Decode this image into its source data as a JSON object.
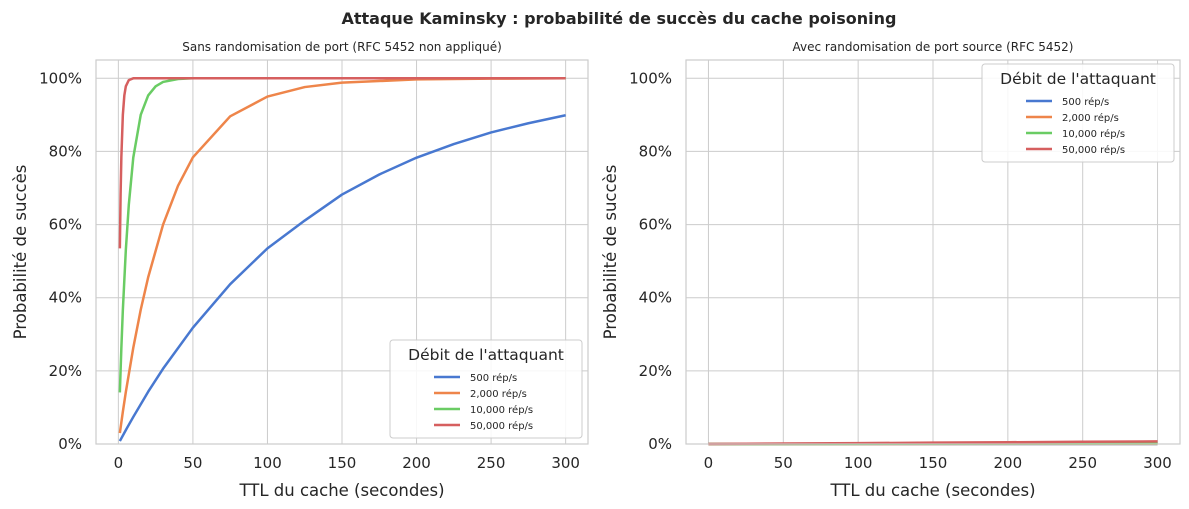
{
  "suptitle": "Attaque Kaminsky : probabilité de succès du cache poisoning",
  "chart_data": [
    {
      "type": "line",
      "title": "Sans randomisation de port (RFC 5452 non appliqué)",
      "xlabel": "TTL du cache (secondes)",
      "ylabel": "Probabilité de succès",
      "xlim": [
        -15,
        315
      ],
      "ylim": [
        0,
        1.05
      ],
      "xticks": [
        0,
        50,
        100,
        150,
        200,
        250,
        300
      ],
      "xtick_labels": [
        "0",
        "50",
        "100",
        "150",
        "200",
        "250",
        "300"
      ],
      "yticks": [
        0,
        0.2,
        0.4,
        0.6,
        0.8,
        1.0
      ],
      "ytick_labels": [
        "0%",
        "20%",
        "40%",
        "60%",
        "80%",
        "100%"
      ],
      "grid": true,
      "legend": {
        "title": "Débit de l'attaquant",
        "position": "lower-right",
        "entries": [
          "500 rép/s",
          "2,000 rép/s",
          "10,000 rép/s",
          "50,000 rép/s"
        ]
      },
      "series": [
        {
          "name": "500 rép/s",
          "color": "#4878d0",
          "x": [
            1,
            5,
            10,
            20,
            30,
            50,
            75,
            100,
            125,
            150,
            175,
            200,
            225,
            250,
            275,
            300
          ],
          "y": [
            0.008,
            0.038,
            0.074,
            0.143,
            0.206,
            0.318,
            0.437,
            0.535,
            0.611,
            0.682,
            0.737,
            0.783,
            0.82,
            0.852,
            0.877,
            0.899
          ]
        },
        {
          "name": "2,000 rép/s",
          "color": "#ee854a",
          "x": [
            1,
            3,
            5,
            10,
            15,
            20,
            30,
            40,
            50,
            75,
            100,
            125,
            150,
            200,
            250,
            300
          ],
          "y": [
            0.03,
            0.088,
            0.142,
            0.263,
            0.367,
            0.456,
            0.6,
            0.706,
            0.784,
            0.896,
            0.95,
            0.976,
            0.988,
            0.997,
            0.999,
            1.0
          ]
        },
        {
          "name": "10,000 rép/s",
          "color": "#6acc64",
          "x": [
            1,
            2,
            3,
            5,
            7,
            10,
            15,
            20,
            25,
            30,
            40,
            50,
            75,
            100,
            200,
            300
          ],
          "y": [
            0.141,
            0.262,
            0.366,
            0.53,
            0.654,
            0.783,
            0.9,
            0.953,
            0.978,
            0.99,
            0.998,
            1.0,
            1.0,
            1.0,
            1.0,
            1.0
          ]
        },
        {
          "name": "50,000 rép/s",
          "color": "#d65f5f",
          "x": [
            1,
            1.5,
            2,
            3,
            4,
            5,
            7,
            10,
            20,
            50,
            100,
            200,
            300
          ],
          "y": [
            0.535,
            0.684,
            0.784,
            0.9,
            0.953,
            0.978,
            0.995,
            1.0,
            1.0,
            1.0,
            1.0,
            1.0,
            1.0
          ]
        }
      ]
    },
    {
      "type": "line",
      "title": "Avec randomisation de port source (RFC 5452)",
      "xlabel": "TTL du cache (secondes)",
      "ylabel": "Probabilité de succès",
      "xlim": [
        -15,
        315
      ],
      "ylim": [
        0,
        1.05
      ],
      "xticks": [
        0,
        50,
        100,
        150,
        200,
        250,
        300
      ],
      "xtick_labels": [
        "0",
        "50",
        "100",
        "150",
        "200",
        "250",
        "300"
      ],
      "yticks": [
        0,
        0.2,
        0.4,
        0.6,
        0.8,
        1.0
      ],
      "ytick_labels": [
        "0%",
        "20%",
        "40%",
        "60%",
        "80%",
        "100%"
      ],
      "grid": true,
      "legend": {
        "title": "Débit de l'attaquant",
        "position": "upper-right",
        "entries": [
          "500 rép/s",
          "2,000 rép/s",
          "10,000 rép/s",
          "50,000 rép/s"
        ]
      },
      "series": [
        {
          "name": "500 rép/s",
          "color": "#4878d0",
          "x": [
            0,
            300
          ],
          "y": [
            0.0,
            0.0001
          ]
        },
        {
          "name": "2,000 rép/s",
          "color": "#ee854a",
          "x": [
            0,
            300
          ],
          "y": [
            0.0,
            0.0003
          ]
        },
        {
          "name": "10,000 rép/s",
          "color": "#6acc64",
          "x": [
            0,
            300
          ],
          "y": [
            0.0,
            0.0014
          ]
        },
        {
          "name": "50,000 rép/s",
          "color": "#d65f5f",
          "x": [
            0,
            50,
            100,
            150,
            200,
            250,
            300
          ],
          "y": [
            0.0,
            0.0012,
            0.0024,
            0.0036,
            0.0048,
            0.006,
            0.0072
          ]
        }
      ]
    }
  ]
}
